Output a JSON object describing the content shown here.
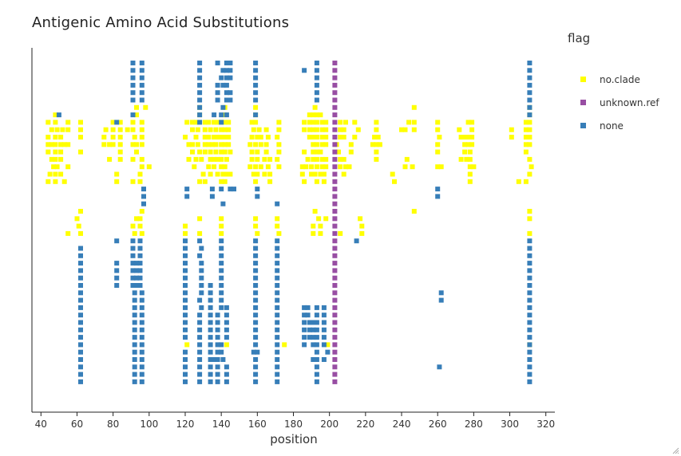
{
  "chart_data": {
    "type": "scatter",
    "title": "Antigenic Amino Acid Substitutions",
    "xlabel": "position",
    "ylabel": "",
    "xlim": [
      35,
      325
    ],
    "xticks": [
      40,
      60,
      80,
      100,
      120,
      140,
      160,
      180,
      200,
      220,
      240,
      260,
      280,
      300,
      320
    ],
    "legend_title": "flag",
    "legend_position": "right",
    "grid": false,
    "rows": 44,
    "series": [
      {
        "name": "no.clade",
        "color": "#ffff00",
        "rows": {
          "6": [
            93,
            98,
            128,
            142,
            159,
            192,
            247,
            311
          ],
          "7": [
            48,
            93,
            128,
            142,
            159,
            189,
            191,
            193,
            195,
            311
          ],
          "8": [
            44,
            48,
            55,
            62,
            80,
            84,
            91,
            96,
            121,
            124,
            126,
            131,
            133,
            136,
            138,
            140,
            142,
            144,
            157,
            159,
            172,
            186,
            189,
            191,
            193,
            196,
            198,
            206,
            209,
            214,
            226,
            244,
            247,
            260,
            277,
            279,
            309,
            311
          ],
          "9": [
            46,
            49,
            52,
            55,
            62,
            76,
            80,
            84,
            88,
            91,
            96,
            124,
            127,
            131,
            134,
            137,
            140,
            142,
            144,
            158,
            161,
            165,
            172,
            186,
            189,
            191,
            193,
            196,
            198,
            206,
            208,
            216,
            226,
            240,
            242,
            247,
            260,
            272,
            279,
            301,
            309,
            311
          ],
          "10": [
            44,
            48,
            51,
            62,
            75,
            80,
            84,
            92,
            96,
            120,
            126,
            131,
            133,
            136,
            138,
            140,
            142,
            144,
            157,
            160,
            162,
            166,
            171,
            189,
            191,
            193,
            196,
            198,
            206,
            208,
            214,
            225,
            227,
            261,
            273,
            275,
            277,
            279,
            301,
            309,
            311
          ],
          "11": [
            44,
            46,
            48,
            51,
            53,
            55,
            75,
            78,
            80,
            84,
            91,
            93,
            96,
            122,
            124,
            127,
            131,
            133,
            135,
            137,
            140,
            142,
            144,
            156,
            159,
            162,
            165,
            172,
            191,
            193,
            196,
            198,
            204,
            212,
            224,
            226,
            228,
            260,
            275,
            277,
            279,
            309,
            311
          ],
          "12": [
            44,
            48,
            51,
            62,
            84,
            93,
            124,
            128,
            131,
            134,
            137,
            140,
            142,
            145,
            157,
            160,
            165,
            172,
            186,
            191,
            193,
            195,
            205,
            212,
            226,
            260,
            275,
            278,
            309
          ],
          "13": [
            46,
            48,
            51,
            78,
            84,
            91,
            96,
            122,
            126,
            129,
            134,
            136,
            138,
            140,
            143,
            157,
            160,
            164,
            167,
            171,
            188,
            191,
            193,
            196,
            198,
            206,
            208,
            226,
            243,
            273,
            276,
            278,
            311
          ],
          "14": [
            47,
            49,
            55,
            96,
            100,
            125,
            133,
            136,
            140,
            142,
            156,
            159,
            162,
            166,
            172,
            185,
            187,
            190,
            193,
            196,
            198,
            206,
            209,
            211,
            242,
            246,
            260,
            262,
            278,
            280,
            312
          ],
          "15": [
            45,
            48,
            51,
            82,
            95,
            130,
            134,
            138,
            141,
            143,
            145,
            158,
            160,
            164,
            167,
            185,
            190,
            192,
            195,
            197,
            208,
            235,
            278,
            311
          ],
          "16": [
            44,
            48,
            53,
            82,
            91,
            95,
            128,
            131,
            140,
            142,
            159,
            167,
            186,
            193,
            197,
            236,
            278,
            305,
            309
          ],
          "20": [
            62,
            96,
            192,
            247,
            311
          ],
          "21": [
            60,
            93,
            95,
            128,
            140,
            159,
            171,
            194,
            198,
            217,
            311
          ],
          "22": [
            61,
            91,
            95,
            120,
            140,
            159,
            171,
            191,
            195,
            218
          ],
          "23": [
            55,
            62,
            92,
            96,
            120,
            128,
            140,
            160,
            172,
            191,
            195,
            206,
            218,
            311
          ],
          "38": [
            121,
            143,
            175,
            199,
            311
          ]
        }
      },
      {
        "name": "unknown.ref",
        "color": "#984ea3",
        "rows": {
          "0": [
            203
          ],
          "1": [
            203
          ],
          "2": [
            203
          ],
          "3": [
            203
          ],
          "4": [
            203
          ],
          "5": [
            203
          ],
          "6": [
            203
          ],
          "7": [
            203
          ],
          "8": [
            203
          ],
          "9": [
            203
          ],
          "10": [
            203
          ],
          "11": [
            203
          ],
          "12": [
            203
          ],
          "13": [
            203
          ],
          "14": [
            203
          ],
          "15": [
            203
          ],
          "16": [
            203
          ],
          "17": [
            203
          ],
          "18": [
            203
          ],
          "19": [
            203
          ],
          "20": [
            203
          ],
          "21": [
            203
          ],
          "22": [
            203
          ],
          "23": [
            203
          ],
          "24": [
            203
          ],
          "25": [
            203
          ],
          "26": [
            203
          ],
          "27": [
            203
          ],
          "28": [
            203
          ],
          "29": [
            203
          ],
          "30": [
            203
          ],
          "31": [
            203
          ],
          "32": [
            203
          ],
          "33": [
            203
          ],
          "34": [
            203
          ],
          "35": [
            203
          ],
          "36": [
            203
          ],
          "37": [
            203
          ],
          "38": [
            203
          ],
          "39": [
            203
          ],
          "40": [
            203
          ],
          "41": [
            203
          ],
          "42": [
            203
          ],
          "43": [
            203
          ]
        }
      },
      {
        "name": "none",
        "color": "#377eb8",
        "rows": {
          "0": [
            91,
            96,
            128,
            138,
            143,
            145,
            159,
            193,
            311
          ],
          "1": [
            91,
            96,
            128,
            141,
            143,
            145,
            159,
            186,
            193,
            311
          ],
          "2": [
            91,
            96,
            128,
            140,
            143,
            145,
            159,
            193,
            311
          ],
          "3": [
            91,
            96,
            128,
            138,
            141,
            143,
            159,
            193,
            311
          ],
          "4": [
            91,
            96,
            128,
            138,
            143,
            145,
            159,
            193,
            311
          ],
          "5": [
            91,
            96,
            128,
            138,
            143,
            145,
            159,
            193,
            311
          ],
          "6": [
            128,
            141,
            311
          ],
          "7": [
            50,
            91,
            128,
            136,
            140,
            143,
            159,
            311
          ],
          "8": [
            82,
            128,
            140
          ],
          "17": [
            97,
            121,
            135,
            140,
            145,
            147,
            160,
            260
          ],
          "18": [
            97,
            121,
            135,
            160,
            260
          ],
          "19": [
            97,
            141,
            171
          ],
          "24": [
            82,
            91,
            95,
            120,
            128,
            140,
            159,
            171,
            215,
            311
          ],
          "25": [
            62,
            91,
            95,
            120,
            129,
            140,
            159,
            171,
            311
          ],
          "26": [
            62,
            91,
            95,
            120,
            128,
            140,
            159,
            171,
            311
          ],
          "27": [
            62,
            82,
            91,
            93,
            95,
            120,
            129,
            140,
            159,
            171,
            311
          ],
          "28": [
            62,
            82,
            91,
            93,
            95,
            120,
            129,
            140,
            159,
            171,
            311
          ],
          "29": [
            62,
            82,
            91,
            93,
            95,
            120,
            129,
            140,
            159,
            171,
            311
          ],
          "30": [
            62,
            82,
            91,
            93,
            95,
            120,
            129,
            134,
            140,
            159,
            171,
            311
          ],
          "31": [
            62,
            92,
            96,
            120,
            129,
            134,
            140,
            159,
            171,
            262,
            311
          ],
          "32": [
            62,
            92,
            96,
            120,
            128,
            134,
            140,
            159,
            171,
            262,
            311
          ],
          "33": [
            62,
            92,
            96,
            120,
            129,
            134,
            140,
            143,
            159,
            171,
            186,
            188,
            193,
            197,
            311
          ],
          "34": [
            62,
            92,
            96,
            120,
            128,
            134,
            138,
            143,
            159,
            171,
            186,
            188,
            193,
            197,
            311
          ],
          "35": [
            62,
            92,
            96,
            120,
            128,
            134,
            138,
            143,
            159,
            171,
            186,
            189,
            191,
            193,
            197,
            311
          ],
          "36": [
            62,
            92,
            96,
            120,
            128,
            134,
            138,
            143,
            159,
            171,
            186,
            189,
            191,
            193,
            197,
            311
          ],
          "37": [
            62,
            92,
            96,
            120,
            128,
            134,
            138,
            143,
            159,
            171,
            186,
            189,
            191,
            193,
            197,
            311
          ],
          "38": [
            62,
            92,
            96,
            128,
            134,
            138,
            140,
            159,
            171,
            186,
            191,
            193,
            197,
            311
          ],
          "39": [
            62,
            92,
            96,
            120,
            128,
            134,
            138,
            140,
            158,
            160,
            171,
            193,
            199,
            311
          ],
          "40": [
            62,
            92,
            96,
            120,
            128,
            134,
            136,
            138,
            141,
            159,
            171,
            191,
            193,
            197,
            311
          ],
          "41": [
            62,
            92,
            96,
            120,
            128,
            134,
            138,
            143,
            159,
            171,
            193,
            261,
            311
          ],
          "42": [
            62,
            92,
            96,
            120,
            128,
            134,
            138,
            143,
            159,
            171,
            193,
            311
          ],
          "43": [
            62,
            92,
            96,
            120,
            128,
            134,
            138,
            143,
            159,
            171,
            193,
            311
          ]
        }
      }
    ]
  }
}
